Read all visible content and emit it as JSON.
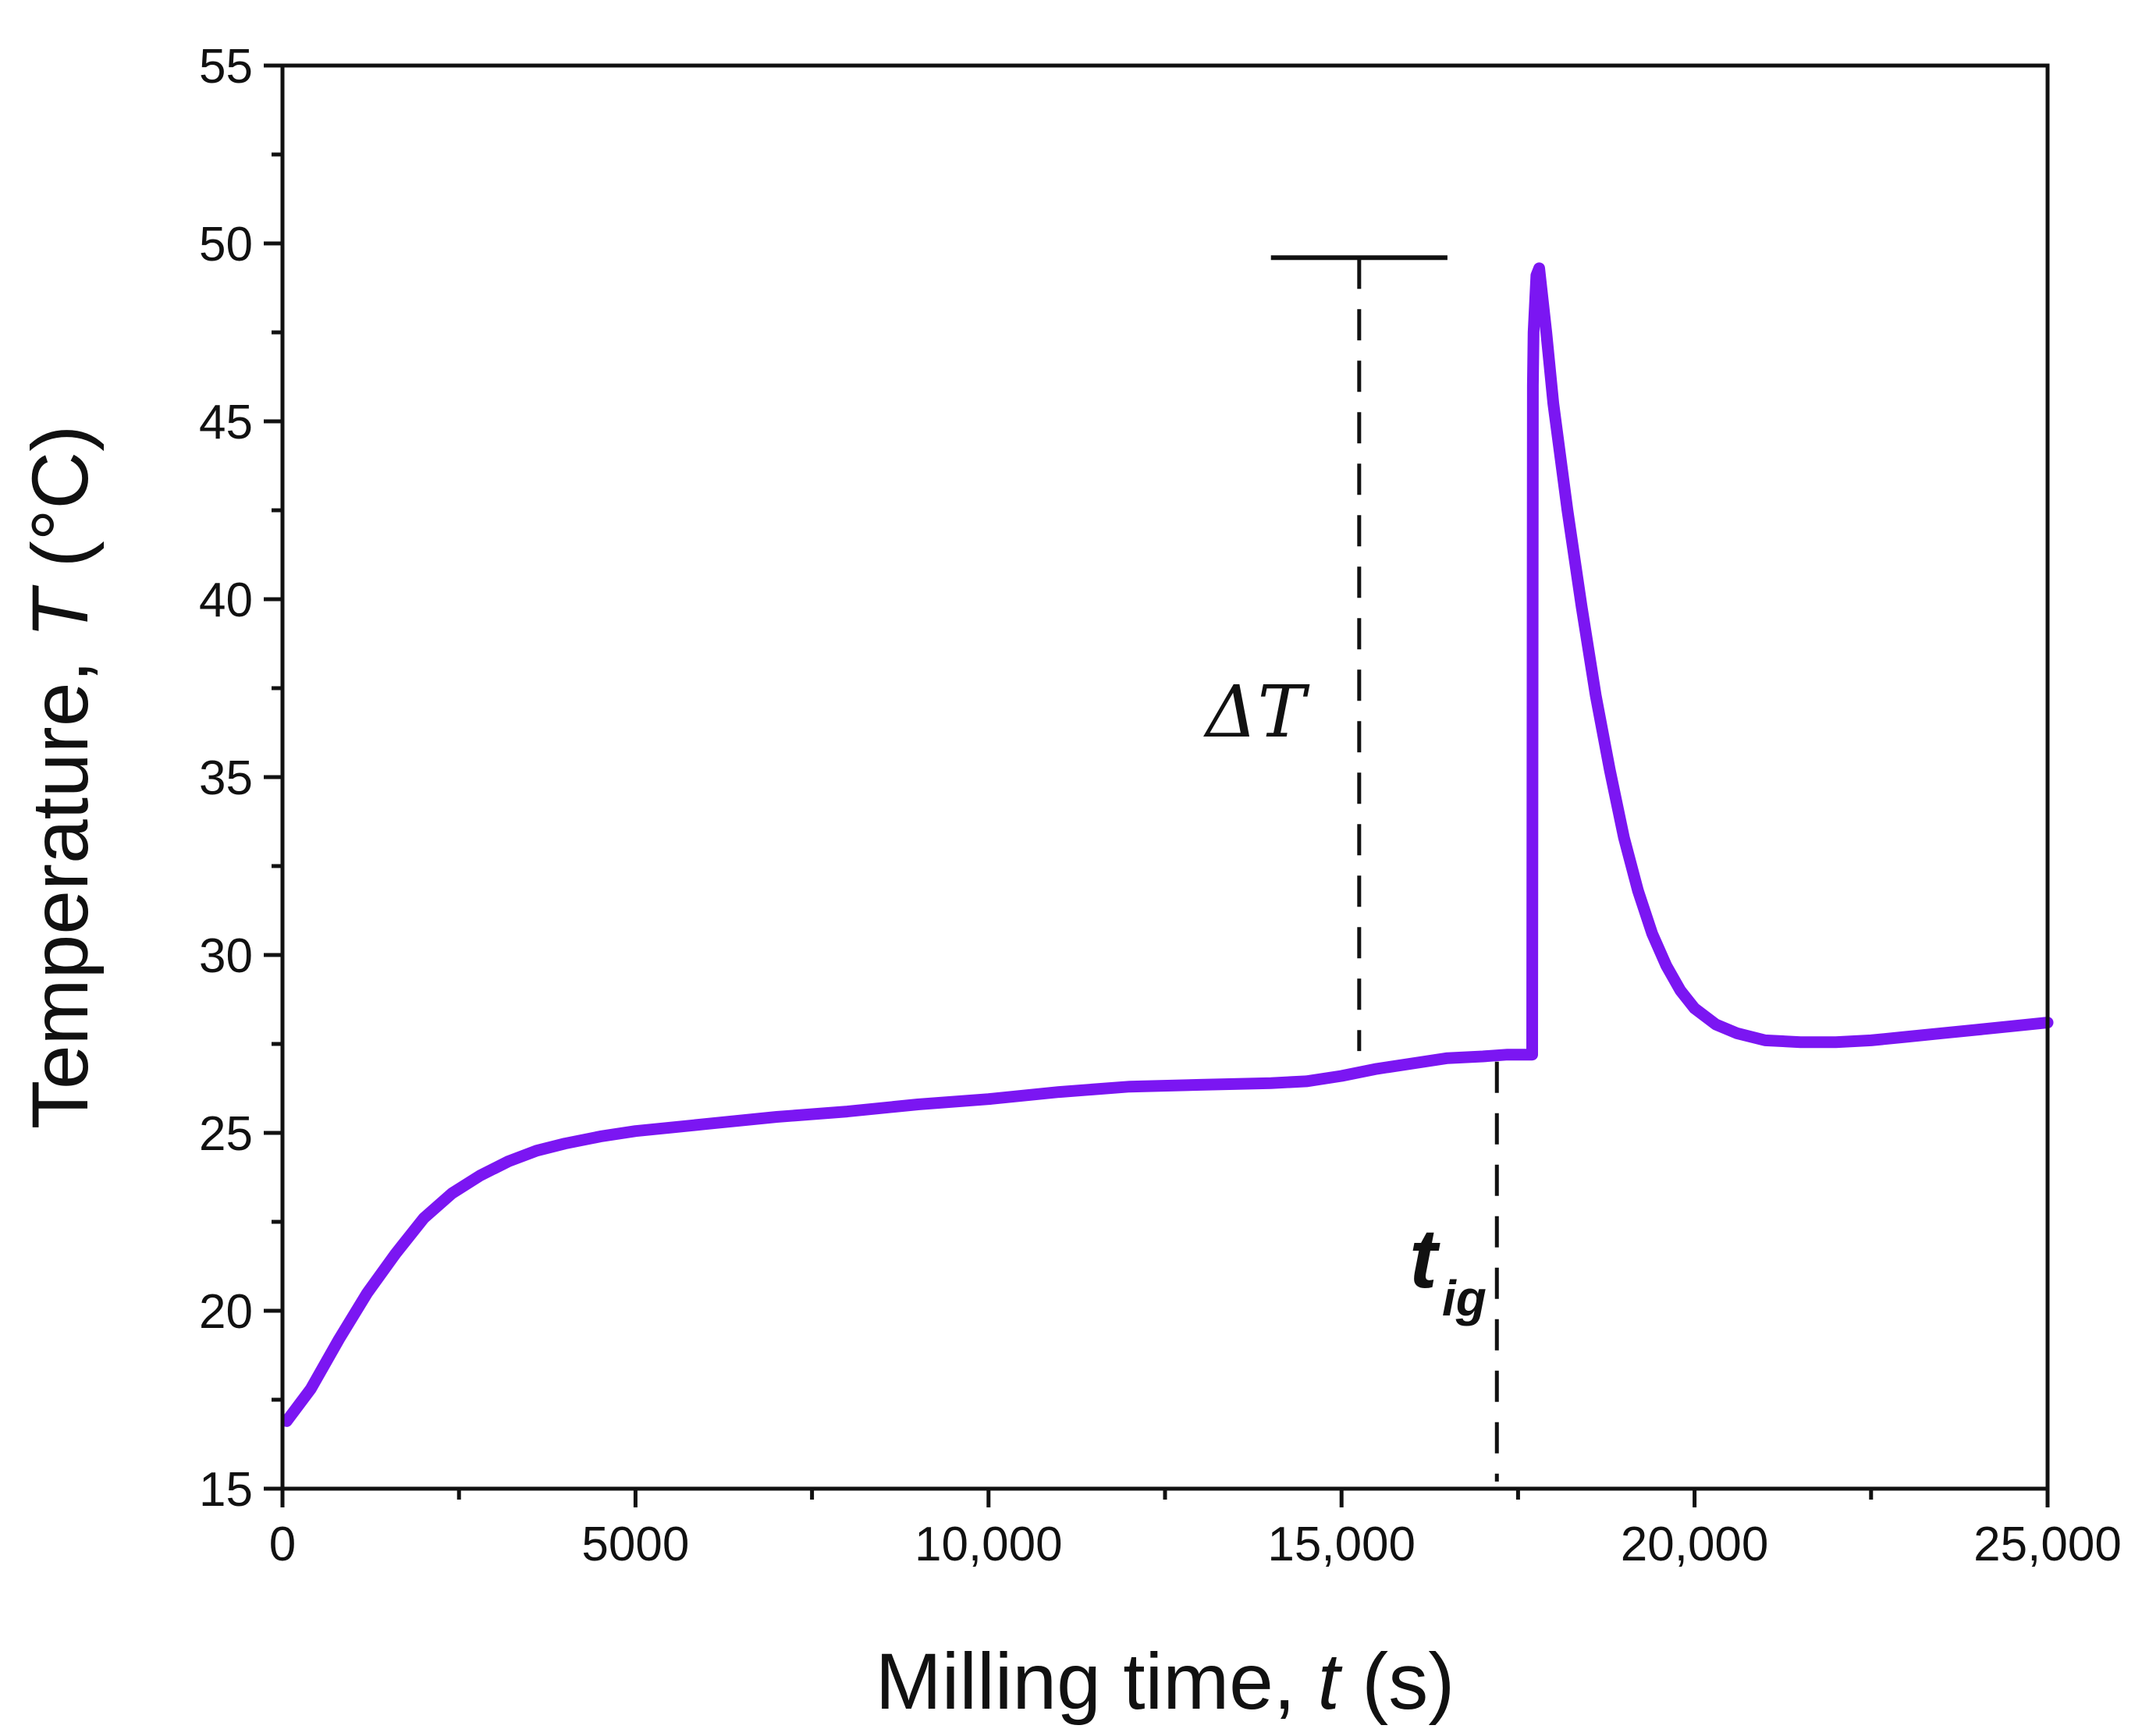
{
  "chart_data": {
    "type": "line",
    "title": "",
    "xlabel": {
      "prefix": "Milling time, ",
      "var": "t",
      "suffix": " (s)"
    },
    "ylabel": {
      "prefix": "Temperature, ",
      "var": "T",
      "suffix": " (°C)"
    },
    "xlim": [
      0,
      25000
    ],
    "ylim": [
      15,
      55
    ],
    "x_ticks": [
      {
        "value": 0,
        "label": "0"
      },
      {
        "value": 5000,
        "label": "5000"
      },
      {
        "value": 10000,
        "label": "10,000"
      },
      {
        "value": 15000,
        "label": "15,000"
      },
      {
        "value": 20000,
        "label": "20,000"
      },
      {
        "value": 25000,
        "label": "25,000"
      }
    ],
    "x_minor_step": 2500,
    "y_ticks": [
      15,
      20,
      25,
      30,
      35,
      40,
      45,
      50,
      55
    ],
    "y_minor_step": 2.5,
    "grid": false,
    "series": [
      {
        "name": "Temperature",
        "color": "#7b16f2",
        "x": [
          60,
          400,
          800,
          1200,
          1600,
          2000,
          2400,
          2800,
          3200,
          3600,
          4000,
          4500,
          5000,
          5500,
          6000,
          7000,
          8000,
          9000,
          10000,
          11000,
          12000,
          13000,
          14000,
          14500,
          15000,
          15500,
          16000,
          16500,
          17000,
          17350,
          17700,
          17710,
          17720,
          17760,
          17800,
          17900,
          18000,
          18200,
          18400,
          18600,
          18800,
          19000,
          19200,
          19400,
          19600,
          19800,
          20000,
          20300,
          20600,
          21000,
          21500,
          22000,
          22500,
          23000,
          23500,
          24000,
          24500,
          25000
        ],
        "y": [
          16.9,
          17.8,
          19.2,
          20.5,
          21.6,
          22.6,
          23.3,
          23.8,
          24.2,
          24.5,
          24.7,
          24.9,
          25.05,
          25.15,
          25.25,
          25.45,
          25.6,
          25.8,
          25.95,
          26.15,
          26.3,
          26.35,
          26.4,
          26.45,
          26.6,
          26.8,
          26.95,
          27.1,
          27.15,
          27.2,
          27.2,
          46.0,
          47.5,
          49.1,
          49.3,
          47.5,
          45.5,
          42.5,
          39.8,
          37.3,
          35.2,
          33.3,
          31.8,
          30.6,
          29.7,
          29.0,
          28.5,
          28.05,
          27.8,
          27.6,
          27.55,
          27.55,
          27.6,
          27.7,
          27.8,
          27.9,
          28.0,
          28.1
        ]
      }
    ],
    "annotations": {
      "delta_label": "ΔT",
      "delta_line": {
        "x": 15250,
        "y_top": 49.6,
        "y_bottom": 27.3,
        "bar_x_from": 14000,
        "bar_x_to": 16500,
        "style": "dashed"
      },
      "tig_label": {
        "main": "t",
        "sub": "ig"
      },
      "tig_line": {
        "x": 17200,
        "y_top": 27.0,
        "y_bottom": 15.2,
        "style": "dashed"
      }
    }
  }
}
